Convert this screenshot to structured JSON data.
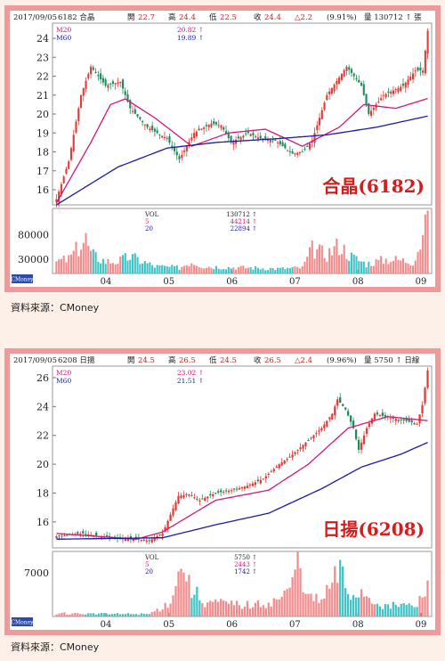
{
  "charts": [
    {
      "id": "c1",
      "header": {
        "date": "2017/09/05",
        "code_name": "6182 合晶",
        "open_label": "開",
        "open": "22.7",
        "high_label": "高",
        "high": "24.4",
        "low_label": "低",
        "low": "22.5",
        "close_label": "收",
        "close": "24.4",
        "change": "△2.2",
        "pct": "(9.91%)",
        "vol_text": "量 130712 ↑ 張"
      },
      "ma_legend": [
        {
          "label": "M20",
          "value": "20.82 ↑",
          "color": "#d6157a"
        },
        {
          "label": "M60",
          "value": "19.89 ↑",
          "color": "#1a1aa0"
        }
      ],
      "vol_legend": [
        {
          "label": "VOL",
          "value": "130712 ↑"
        },
        {
          "label": "5",
          "value": "44214 ↑"
        },
        {
          "label": "20",
          "value": "22894 ↑"
        }
      ],
      "watermark": "CMoney",
      "big_label": "合晶(6182)",
      "source": "資料來源：CMoney"
    },
    {
      "id": "c2",
      "header": {
        "date": "2017/09/05",
        "code_name": "6208 日揚",
        "open_label": "開",
        "open": "24.5",
        "high_label": "高",
        "high": "26.5",
        "low_label": "低",
        "low": "24.5",
        "close_label": "收",
        "close": "26.5",
        "change": "△2.4",
        "pct": "(9.96%)",
        "vol_text": "量 5750 ↑ 日線"
      },
      "ma_legend": [
        {
          "label": "M20",
          "value": "23.02 ↑",
          "color": "#d6157a"
        },
        {
          "label": "M60",
          "value": "21.51 ↑",
          "color": "#1a1aa0"
        }
      ],
      "vol_legend": [
        {
          "label": "VOL",
          "value": "5750 ↑"
        },
        {
          "label": "5",
          "value": "2443 ↑"
        },
        {
          "label": "20",
          "value": "1742 ↑"
        }
      ],
      "watermark": "CMoney",
      "big_label": "日揚(6208)",
      "source": "資料來源：CMoney"
    }
  ],
  "colors": {
    "up": "#e53935",
    "down": "#1e8a5a",
    "vol_up": "#f28b8b",
    "vol_down": "#3fc3c6",
    "ma20": "#d6157a",
    "ma60": "#1a1aa0"
  },
  "chart_data": [
    {
      "type": "candlestick",
      "title": "合晶(6182)",
      "x_ticks": [
        "04",
        "05",
        "06",
        "07",
        "08",
        "09"
      ],
      "y_ticks": [
        16,
        17,
        18,
        19,
        20,
        21,
        22,
        23,
        24
      ],
      "ylim": [
        15.2,
        24.8
      ],
      "vol_ticks": [
        30000,
        80000
      ],
      "vol_ylim": [
        0,
        135000
      ],
      "close_anchors": [
        [
          0,
          15.5
        ],
        [
          5,
          17.5
        ],
        [
          10,
          21
        ],
        [
          14,
          22.5
        ],
        [
          20,
          21.5
        ],
        [
          26,
          21.7
        ],
        [
          30,
          20.3
        ],
        [
          37,
          19.3
        ],
        [
          45,
          18.7
        ],
        [
          50,
          17.6
        ],
        [
          56,
          19
        ],
        [
          63,
          19.5
        ],
        [
          67,
          19.4
        ],
        [
          71,
          18.5
        ],
        [
          78,
          19
        ],
        [
          83,
          18.7
        ],
        [
          89,
          18.6
        ],
        [
          96,
          17.9
        ],
        [
          100,
          18
        ],
        [
          104,
          18.6
        ],
        [
          110,
          21
        ],
        [
          118,
          22.5
        ],
        [
          124,
          21.5
        ],
        [
          127,
          20
        ],
        [
          133,
          21
        ],
        [
          141,
          21.5
        ],
        [
          146,
          22.3
        ],
        [
          149,
          22.3
        ],
        [
          151,
          24.4
        ]
      ],
      "ma20_anchors": [
        [
          0,
          15.3
        ],
        [
          14,
          18.5
        ],
        [
          22,
          20.5
        ],
        [
          28,
          20.8
        ],
        [
          40,
          19.8
        ],
        [
          55,
          18.3
        ],
        [
          70,
          19
        ],
        [
          85,
          19.2
        ],
        [
          100,
          18.3
        ],
        [
          115,
          19.3
        ],
        [
          125,
          20.5
        ],
        [
          138,
          20.3
        ],
        [
          151,
          20.82
        ]
      ],
      "ma60_anchors": [
        [
          0,
          15.2
        ],
        [
          25,
          17.2
        ],
        [
          45,
          18.2
        ],
        [
          65,
          18.5
        ],
        [
          90,
          18.7
        ],
        [
          110,
          18.9
        ],
        [
          130,
          19.3
        ],
        [
          151,
          19.89
        ]
      ],
      "vol_anchors": [
        [
          0,
          25000
        ],
        [
          5,
          30000
        ],
        [
          10,
          60000
        ],
        [
          12,
          72000
        ],
        [
          14,
          40000
        ],
        [
          20,
          25000
        ],
        [
          25,
          25000
        ],
        [
          30,
          35000
        ],
        [
          40,
          15000
        ],
        [
          50,
          12000
        ],
        [
          55,
          25000
        ],
        [
          60,
          15000
        ],
        [
          70,
          13000
        ],
        [
          80,
          12000
        ],
        [
          90,
          10000
        ],
        [
          100,
          12000
        ],
        [
          104,
          50000
        ],
        [
          110,
          40000
        ],
        [
          115,
          60000
        ],
        [
          120,
          35000
        ],
        [
          126,
          20000
        ],
        [
          135,
          30000
        ],
        [
          145,
          25000
        ],
        [
          150,
          90000
        ],
        [
          151,
          130712
        ]
      ]
    },
    {
      "type": "candlestick",
      "title": "日揚(6208)",
      "x_ticks": [
        "04",
        "05",
        "06",
        "07",
        "08",
        "09"
      ],
      "y_ticks": [
        16,
        18,
        20,
        22,
        24,
        26
      ],
      "ylim": [
        14.2,
        26.8
      ],
      "vol_ticks": [
        7000
      ],
      "vol_ylim": [
        0,
        10400
      ],
      "close_anchors": [
        [
          0,
          15
        ],
        [
          10,
          15.2
        ],
        [
          20,
          14.9
        ],
        [
          30,
          14.8
        ],
        [
          35,
          14.7
        ],
        [
          40,
          15.2
        ],
        [
          43,
          16.5
        ],
        [
          46,
          17.8
        ],
        [
          50,
          17.9
        ],
        [
          54,
          17.5
        ],
        [
          60,
          18
        ],
        [
          66,
          18.2
        ],
        [
          72,
          18.5
        ],
        [
          78,
          19
        ],
        [
          84,
          20
        ],
        [
          88,
          20.5
        ],
        [
          94,
          21.5
        ],
        [
          100,
          22.5
        ],
        [
          104,
          23.5
        ],
        [
          106,
          24.5
        ],
        [
          109,
          23.8
        ],
        [
          112,
          22.5
        ],
        [
          114,
          21
        ],
        [
          117,
          22.5
        ],
        [
          120,
          23.5
        ],
        [
          126,
          23.2
        ],
        [
          132,
          23
        ],
        [
          136,
          22.8
        ],
        [
          138,
          24.1
        ],
        [
          140,
          26.5
        ]
      ],
      "ma20_anchors": [
        [
          0,
          15.2
        ],
        [
          30,
          14.8
        ],
        [
          40,
          15.3
        ],
        [
          60,
          17.5
        ],
        [
          80,
          18.2
        ],
        [
          95,
          20
        ],
        [
          110,
          22.5
        ],
        [
          125,
          23.3
        ],
        [
          140,
          23.02
        ]
      ],
      "ma60_anchors": [
        [
          0,
          14.8
        ],
        [
          40,
          14.9
        ],
        [
          60,
          15.8
        ],
        [
          80,
          16.6
        ],
        [
          100,
          18.3
        ],
        [
          115,
          19.8
        ],
        [
          130,
          20.7
        ],
        [
          140,
          21.51
        ]
      ],
      "vol_anchors": [
        [
          0,
          500
        ],
        [
          20,
          400
        ],
        [
          35,
          400
        ],
        [
          42,
          2000
        ],
        [
          46,
          6500
        ],
        [
          48,
          9000
        ],
        [
          50,
          5000
        ],
        [
          55,
          2500
        ],
        [
          65,
          2000
        ],
        [
          75,
          1800
        ],
        [
          82,
          2500
        ],
        [
          88,
          4000
        ],
        [
          91,
          9800
        ],
        [
          95,
          3000
        ],
        [
          100,
          2500
        ],
        [
          107,
          7500
        ],
        [
          110,
          3500
        ],
        [
          115,
          4000
        ],
        [
          120,
          2500
        ],
        [
          125,
          1500
        ],
        [
          130,
          2000
        ],
        [
          135,
          1500
        ],
        [
          138,
          3000
        ],
        [
          140,
          5750
        ]
      ]
    }
  ]
}
